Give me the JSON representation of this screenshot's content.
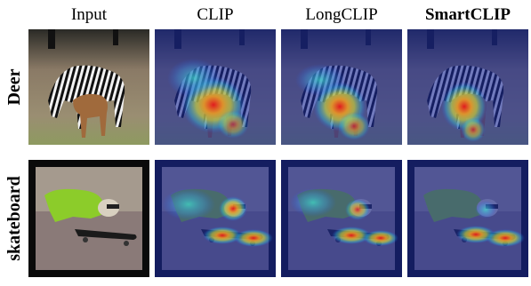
{
  "columns": [
    "Input",
    "CLIP",
    "LongCLIP",
    "SmartCLIP"
  ],
  "rows": [
    "Deer",
    "skateboard"
  ]
}
